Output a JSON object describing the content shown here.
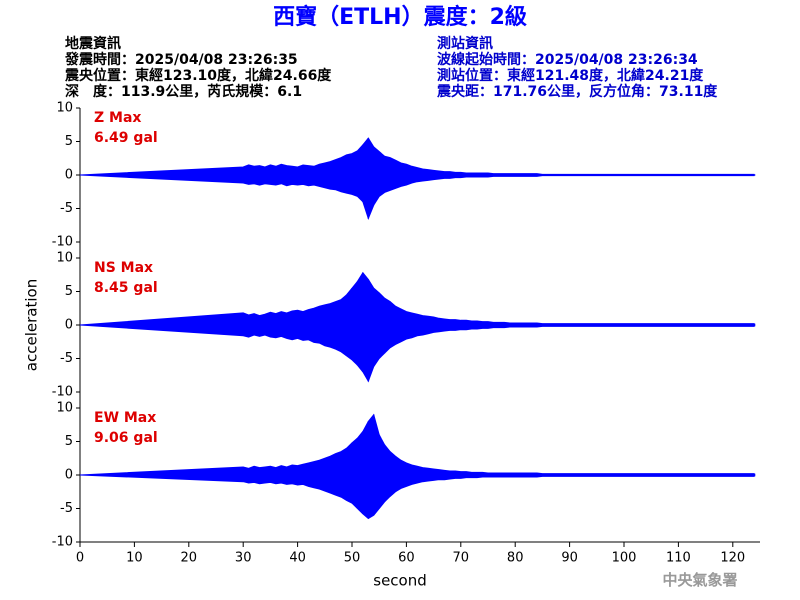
{
  "header": {
    "title": "西寶（ETLH）震度：2級",
    "left": [
      "地震資訊",
      "發震時間：2025/04/08 23:26:35",
      "震央位置：東經123.10度，北緯24.66度",
      "深　度：113.9公里，芮氏規模：6.1"
    ],
    "right": [
      "測站資訊",
      "波線起始時間：2025/04/08 23:26:34",
      "測站位置：東經121.48度，北緯24.21度",
      "震央距：171.76公里，反方位角：73.11度"
    ],
    "footer": "中央氣象署"
  },
  "chart_data": [
    {
      "type": "line",
      "annotation": [
        "Z Max",
        "6.49 gal"
      ],
      "annotation_color": "#dd0000",
      "xlim": [
        0,
        125
      ],
      "ylim": [
        -10,
        10
      ],
      "yticks": [
        10,
        5,
        0,
        -5,
        -10
      ],
      "x": [
        0,
        30,
        31,
        32,
        33,
        34,
        35,
        36,
        37,
        38,
        39,
        40,
        41,
        42,
        43,
        44,
        45,
        46,
        47,
        48,
        49,
        50,
        51,
        52,
        53,
        54,
        55,
        56,
        57,
        58,
        59,
        60,
        61,
        62,
        63,
        64,
        65,
        66,
        67,
        68,
        69,
        70,
        71,
        72,
        73,
        74,
        75,
        76,
        77,
        78,
        79,
        80,
        81,
        82,
        83,
        84,
        85,
        86,
        87,
        88,
        89,
        90,
        91,
        92,
        93,
        94,
        95,
        96,
        97,
        98,
        99,
        100,
        101,
        102,
        103,
        104,
        105,
        106,
        107,
        108,
        109,
        110,
        111,
        112,
        113,
        114,
        115,
        116,
        117,
        118,
        119,
        120,
        121,
        122,
        123,
        124
      ],
      "series": [
        {
          "color": "#0000ff",
          "values": [
            0,
            1.2,
            1.5,
            1.3,
            1.4,
            1.2,
            1.5,
            1.3,
            1.6,
            1.4,
            1.3,
            1.2,
            1.5,
            1.4,
            1.3,
            1.6,
            1.8,
            2.0,
            2.3,
            2.6,
            3.0,
            3.2,
            3.6,
            4.5,
            5.5,
            4.2,
            3.5,
            2.8,
            2.6,
            2.2,
            1.8,
            1.6,
            1.3,
            1.1,
            0.9,
            0.8,
            0.7,
            0.6,
            0.5,
            0.5,
            0.4,
            0.4,
            0.3,
            0.3,
            0.3,
            0.3,
            0.3,
            0.2,
            0.2,
            0.2,
            0.2,
            0.2,
            0.2,
            0.2,
            0.2,
            0.2,
            0.1,
            0.1,
            0.1,
            0.1,
            0.1,
            0.1,
            0.1,
            0.1,
            0.1,
            0.1,
            0.1,
            0.1,
            0.1,
            0.1,
            0.1,
            0.1,
            0.1,
            0.1,
            0.1,
            0.1,
            0.1,
            0.1,
            0.1,
            0.1,
            0.1,
            0.1,
            0.1,
            0.1,
            0.1,
            0.1,
            0.1,
            0.1,
            0.1,
            0.1,
            0.1,
            0.1,
            0.1,
            0.1,
            0.1,
            0.1
          ]
        },
        {
          "color": "#0000ff",
          "values": [
            0,
            -1.2,
            -1.4,
            -1.3,
            -1.5,
            -1.3,
            -1.4,
            -1.5,
            -1.3,
            -1.6,
            -1.4,
            -1.5,
            -1.4,
            -1.6,
            -1.5,
            -1.7,
            -1.9,
            -2.1,
            -2.2,
            -2.5,
            -2.7,
            -2.9,
            -3.2,
            -4.0,
            -6.5,
            -4.5,
            -3.2,
            -2.6,
            -2.3,
            -2.0,
            -1.7,
            -1.5,
            -1.2,
            -1.0,
            -0.9,
            -0.8,
            -0.7,
            -0.6,
            -0.5,
            -0.5,
            -0.4,
            -0.4,
            -0.3,
            -0.3,
            -0.3,
            -0.3,
            -0.3,
            -0.2,
            -0.2,
            -0.2,
            -0.2,
            -0.2,
            -0.2,
            -0.2,
            -0.2,
            -0.2,
            -0.1,
            -0.1,
            -0.1,
            -0.1,
            -0.1,
            -0.1,
            -0.1,
            -0.1,
            -0.1,
            -0.1,
            -0.1,
            -0.1,
            -0.1,
            -0.1,
            -0.1,
            -0.1,
            -0.1,
            -0.1,
            -0.1,
            -0.1,
            -0.1,
            -0.1,
            -0.1,
            -0.1,
            -0.1,
            -0.1,
            -0.1,
            -0.1,
            -0.1,
            -0.1,
            -0.1,
            -0.1,
            -0.1,
            -0.1,
            -0.1,
            -0.1,
            -0.1,
            -0.1,
            -0.1,
            -0.1
          ]
        }
      ]
    },
    {
      "type": "line",
      "annotation": [
        "NS Max",
        "8.45 gal"
      ],
      "annotation_color": "#dd0000",
      "ylabel": "acceleration",
      "xlim": [
        0,
        125
      ],
      "ylim": [
        -10,
        10
      ],
      "yticks": [
        10,
        5,
        0,
        -5,
        -10
      ],
      "x": [
        0,
        30,
        31,
        32,
        33,
        34,
        35,
        36,
        37,
        38,
        39,
        40,
        41,
        42,
        43,
        44,
        45,
        46,
        47,
        48,
        49,
        50,
        51,
        52,
        53,
        54,
        55,
        56,
        57,
        58,
        59,
        60,
        61,
        62,
        63,
        64,
        65,
        66,
        67,
        68,
        69,
        70,
        71,
        72,
        73,
        74,
        75,
        76,
        77,
        78,
        79,
        80,
        81,
        82,
        83,
        84,
        85,
        86,
        87,
        88,
        89,
        90,
        91,
        92,
        93,
        94,
        95,
        96,
        97,
        98,
        99,
        100,
        101,
        102,
        103,
        104,
        105,
        106,
        107,
        108,
        109,
        110,
        111,
        112,
        113,
        114,
        115,
        116,
        117,
        118,
        119,
        120,
        121,
        122,
        123,
        124
      ],
      "series": [
        {
          "color": "#0000ff",
          "values": [
            0,
            1.8,
            1.5,
            1.7,
            1.4,
            1.6,
            1.9,
            1.7,
            2.0,
            1.8,
            2.1,
            2.2,
            2.0,
            2.3,
            2.5,
            2.8,
            3.0,
            3.2,
            3.5,
            3.8,
            4.5,
            5.5,
            6.5,
            7.8,
            6.8,
            5.5,
            4.8,
            4.0,
            3.5,
            2.8,
            2.4,
            2.0,
            1.8,
            1.6,
            1.4,
            1.3,
            1.2,
            1.0,
            0.9,
            0.8,
            0.8,
            0.7,
            0.7,
            0.6,
            0.6,
            0.5,
            0.5,
            0.4,
            0.4,
            0.4,
            0.3,
            0.3,
            0.3,
            0.3,
            0.3,
            0.3,
            0.2,
            0.2,
            0.2,
            0.2,
            0.2,
            0.2,
            0.2,
            0.2,
            0.2,
            0.2,
            0.2,
            0.2,
            0.2,
            0.2,
            0.2,
            0.2,
            0.2,
            0.2,
            0.2,
            0.2,
            0.2,
            0.2,
            0.2,
            0.2,
            0.2,
            0.2,
            0.2,
            0.2,
            0.2,
            0.2,
            0.2,
            0.2,
            0.2,
            0.2,
            0.2,
            0.2,
            0.2,
            0.2,
            0.2,
            0.2
          ]
        },
        {
          "color": "#0000ff",
          "values": [
            0,
            -1.6,
            -1.8,
            -1.5,
            -1.7,
            -1.5,
            -1.8,
            -1.9,
            -1.7,
            -2.0,
            -2.2,
            -2.0,
            -2.3,
            -2.2,
            -2.6,
            -2.7,
            -3.1,
            -3.3,
            -3.6,
            -4.0,
            -4.6,
            -5.2,
            -6.0,
            -7.0,
            -8.4,
            -6.2,
            -5.0,
            -4.2,
            -3.4,
            -2.9,
            -2.5,
            -2.1,
            -1.9,
            -1.6,
            -1.5,
            -1.3,
            -1.1,
            -1.0,
            -0.9,
            -0.8,
            -0.8,
            -0.7,
            -0.7,
            -0.6,
            -0.6,
            -0.5,
            -0.5,
            -0.4,
            -0.4,
            -0.4,
            -0.3,
            -0.3,
            -0.3,
            -0.3,
            -0.3,
            -0.3,
            -0.2,
            -0.2,
            -0.2,
            -0.2,
            -0.2,
            -0.2,
            -0.2,
            -0.2,
            -0.2,
            -0.2,
            -0.2,
            -0.2,
            -0.2,
            -0.2,
            -0.2,
            -0.2,
            -0.2,
            -0.2,
            -0.2,
            -0.2,
            -0.2,
            -0.2,
            -0.2,
            -0.2,
            -0.2,
            -0.2,
            -0.2,
            -0.2,
            -0.2,
            -0.2,
            -0.2,
            -0.2,
            -0.2,
            -0.2,
            -0.2,
            -0.2,
            -0.2,
            -0.2,
            -0.2,
            -0.2
          ]
        }
      ]
    },
    {
      "type": "line",
      "annotation": [
        "EW Max",
        "9.06 gal"
      ],
      "annotation_color": "#dd0000",
      "xlabel": "second",
      "xlim": [
        0,
        125
      ],
      "xticks": [
        0,
        10,
        20,
        30,
        40,
        50,
        60,
        70,
        80,
        90,
        100,
        110,
        120
      ],
      "ylim": [
        -10,
        10
      ],
      "yticks": [
        10,
        5,
        0,
        -5,
        -10
      ],
      "x": [
        0,
        30,
        31,
        32,
        33,
        34,
        35,
        36,
        37,
        38,
        39,
        40,
        41,
        42,
        43,
        44,
        45,
        46,
        47,
        48,
        49,
        50,
        51,
        52,
        53,
        54,
        55,
        56,
        57,
        58,
        59,
        60,
        61,
        62,
        63,
        64,
        65,
        66,
        67,
        68,
        69,
        70,
        71,
        72,
        73,
        74,
        75,
        76,
        77,
        78,
        79,
        80,
        81,
        82,
        83,
        84,
        85,
        86,
        87,
        88,
        89,
        90,
        91,
        92,
        93,
        94,
        95,
        96,
        97,
        98,
        99,
        100,
        101,
        102,
        103,
        104,
        105,
        106,
        107,
        108,
        109,
        110,
        111,
        112,
        113,
        114,
        115,
        116,
        117,
        118,
        119,
        120,
        121,
        122,
        123,
        124
      ],
      "series": [
        {
          "color": "#0000ff",
          "values": [
            0,
            1.2,
            1.0,
            1.3,
            1.1,
            1.2,
            1.3,
            1.1,
            1.4,
            1.2,
            1.5,
            1.4,
            1.6,
            1.8,
            2.0,
            2.2,
            2.5,
            2.8,
            3.2,
            3.5,
            4.0,
            4.8,
            5.5,
            6.5,
            8.0,
            9.0,
            6.0,
            4.5,
            3.5,
            2.8,
            2.2,
            1.8,
            1.5,
            1.3,
            1.1,
            1.0,
            0.9,
            0.8,
            0.7,
            0.6,
            0.6,
            0.5,
            0.5,
            0.4,
            0.4,
            0.4,
            0.3,
            0.3,
            0.3,
            0.3,
            0.3,
            0.3,
            0.3,
            0.3,
            0.3,
            0.3,
            0.2,
            0.2,
            0.2,
            0.2,
            0.2,
            0.2,
            0.2,
            0.2,
            0.2,
            0.2,
            0.2,
            0.2,
            0.2,
            0.2,
            0.2,
            0.2,
            0.2,
            0.2,
            0.2,
            0.2,
            0.2,
            0.2,
            0.2,
            0.2,
            0.2,
            0.2,
            0.2,
            0.2,
            0.2,
            0.2,
            0.2,
            0.2,
            0.2,
            0.2,
            0.2,
            0.2,
            0.2,
            0.2,
            0.2,
            0.2
          ]
        },
        {
          "color": "#0000ff",
          "values": [
            0,
            -1.0,
            -1.2,
            -1.1,
            -1.3,
            -1.2,
            -1.1,
            -1.3,
            -1.2,
            -1.4,
            -1.3,
            -1.5,
            -1.4,
            -1.7,
            -1.9,
            -2.1,
            -2.4,
            -2.7,
            -3.0,
            -3.3,
            -3.8,
            -4.2,
            -5.0,
            -5.8,
            -6.5,
            -6.0,
            -5.0,
            -4.0,
            -3.2,
            -2.5,
            -2.0,
            -1.7,
            -1.4,
            -1.2,
            -1.0,
            -0.9,
            -0.8,
            -0.7,
            -0.7,
            -0.6,
            -0.5,
            -0.5,
            -0.4,
            -0.4,
            -0.4,
            -0.3,
            -0.3,
            -0.3,
            -0.3,
            -0.3,
            -0.3,
            -0.3,
            -0.3,
            -0.3,
            -0.3,
            -0.3,
            -0.2,
            -0.2,
            -0.2,
            -0.2,
            -0.2,
            -0.2,
            -0.2,
            -0.2,
            -0.2,
            -0.2,
            -0.2,
            -0.2,
            -0.2,
            -0.2,
            -0.2,
            -0.2,
            -0.2,
            -0.2,
            -0.2,
            -0.2,
            -0.2,
            -0.2,
            -0.2,
            -0.2,
            -0.2,
            -0.2,
            -0.2,
            -0.2,
            -0.2,
            -0.2,
            -0.2,
            -0.2,
            -0.2,
            -0.2,
            -0.2,
            -0.2,
            -0.2,
            -0.2,
            -0.2,
            -0.2
          ]
        }
      ]
    }
  ]
}
